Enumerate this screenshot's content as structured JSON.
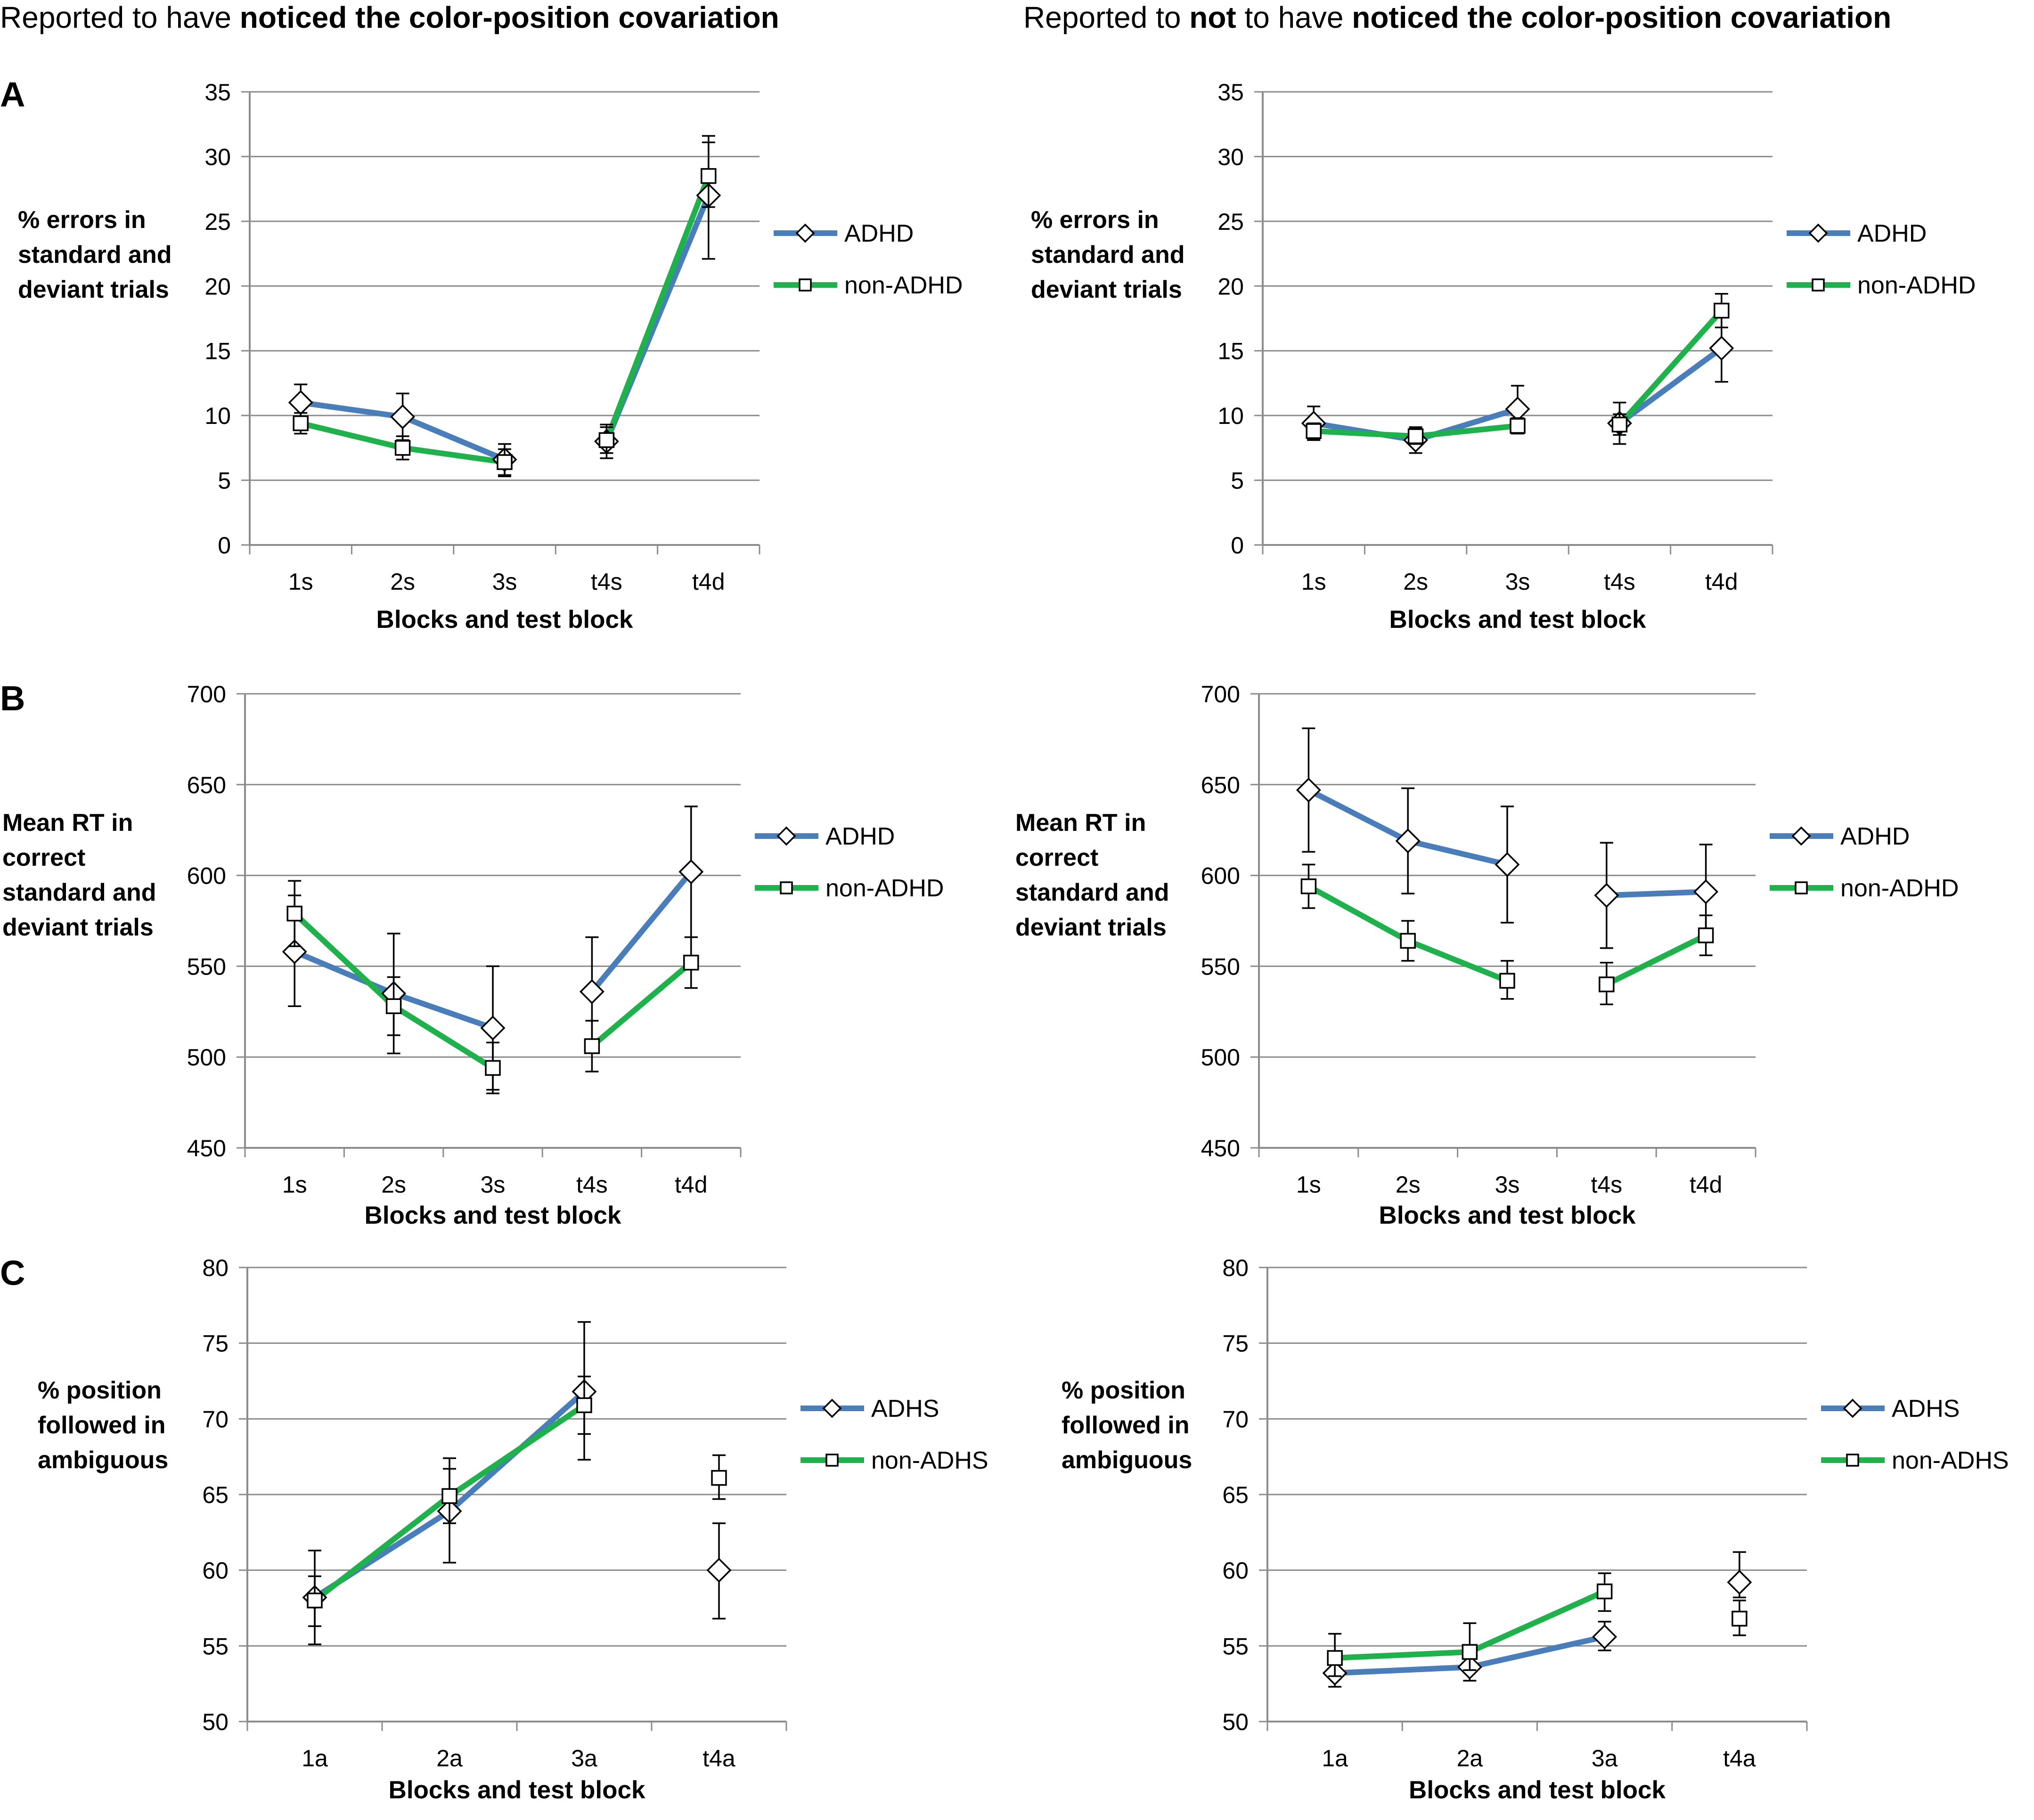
{
  "columns": [
    {
      "prefix": "Reported to have ",
      "bold": "noticed the color-position covariation"
    },
    {
      "prefix": "Reported to ",
      "bold1": "not",
      "middle": " to have ",
      "bold": "noticed the color-position covariation"
    }
  ],
  "panel_letters": [
    "A",
    "B",
    "C"
  ],
  "colors": {
    "blue": "#4a7ebb",
    "green": "#1fb14b",
    "grid": "#8c8c8c",
    "axis": "#8c8c8c"
  },
  "chart_data": [
    {
      "id": "A-left",
      "type": "line",
      "panel": "A",
      "ylabel": [
        "% errors in",
        "standard and",
        "deviant trials"
      ],
      "xlabel": "Blocks and test block",
      "categories": [
        "1s",
        "2s",
        "3s",
        "t4s",
        "t4d"
      ],
      "ylim": [
        0,
        35
      ],
      "yticks": [
        0,
        5,
        10,
        15,
        20,
        25,
        30,
        35
      ],
      "segments": [
        [
          0,
          1,
          2
        ],
        [
          3,
          4
        ]
      ],
      "series": [
        {
          "name": "ADHD",
          "color": "#4a7ebb",
          "marker": "diamond",
          "values": [
            11.0,
            9.9,
            6.6,
            8.0,
            27.0
          ],
          "err_low": [
            9.6,
            8.1,
            5.3,
            6.7,
            22.1
          ],
          "err_high": [
            12.4,
            11.7,
            7.8,
            9.3,
            31.1
          ]
        },
        {
          "name": "non-ADHD",
          "color": "#1fb14b",
          "marker": "square",
          "values": [
            9.4,
            7.5,
            6.4,
            8.1,
            28.5
          ],
          "err_low": [
            8.6,
            6.6,
            5.4,
            7.1,
            26.1
          ],
          "err_high": [
            10.2,
            8.4,
            7.4,
            9.1,
            31.6
          ]
        }
      ]
    },
    {
      "id": "A-right",
      "type": "line",
      "panel": "A",
      "ylabel": [
        "% errors in",
        "standard and",
        "deviant trials"
      ],
      "xlabel": "Blocks and test block",
      "categories": [
        "1s",
        "2s",
        "3s",
        "t4s",
        "t4d"
      ],
      "ylim": [
        0,
        35
      ],
      "yticks": [
        0,
        5,
        10,
        15,
        20,
        25,
        30,
        35
      ],
      "segments": [
        [
          0,
          1,
          2
        ],
        [
          3,
          4
        ]
      ],
      "series": [
        {
          "name": "ADHD",
          "color": "#4a7ebb",
          "marker": "diamond",
          "values": [
            9.4,
            8.1,
            10.5,
            9.4,
            15.2
          ],
          "err_low": [
            8.1,
            7.1,
            8.7,
            7.8,
            12.6
          ],
          "err_high": [
            10.7,
            9.1,
            12.3,
            11.0,
            17.8
          ]
        },
        {
          "name": "non-ADHD",
          "color": "#1fb14b",
          "marker": "square",
          "values": [
            8.8,
            8.4,
            9.2,
            9.3,
            18.1
          ],
          "err_low": [
            8.2,
            7.8,
            8.6,
            8.5,
            16.8
          ],
          "err_high": [
            9.4,
            9.0,
            9.8,
            10.1,
            19.4
          ]
        }
      ]
    },
    {
      "id": "B-left",
      "type": "line",
      "panel": "B",
      "ylabel": [
        "Mean RT in",
        "correct",
        "standard and",
        "deviant trials"
      ],
      "xlabel": "Blocks and test block",
      "categories": [
        "1s",
        "2s",
        "3s",
        "t4s",
        "t4d"
      ],
      "ylim": [
        450,
        700
      ],
      "yticks": [
        450,
        500,
        550,
        600,
        650,
        700
      ],
      "segments": [
        [
          0,
          1,
          2
        ],
        [
          3,
          4
        ]
      ],
      "series": [
        {
          "name": "ADHD",
          "color": "#4a7ebb",
          "marker": "diamond",
          "values": [
            558,
            535,
            516,
            536,
            602
          ],
          "err_low": [
            528,
            502,
            482,
            507,
            566
          ],
          "err_high": [
            589,
            568,
            550,
            566,
            638
          ]
        },
        {
          "name": "non-ADHD",
          "color": "#1fb14b",
          "marker": "square",
          "values": [
            579,
            528,
            494,
            506,
            552
          ],
          "err_low": [
            561,
            512,
            480,
            492,
            538
          ],
          "err_high": [
            597,
            544,
            508,
            520,
            566
          ]
        }
      ]
    },
    {
      "id": "B-right",
      "type": "line",
      "panel": "B",
      "ylabel": [
        "Mean RT in",
        "correct",
        "standard and",
        "deviant trials"
      ],
      "xlabel": "Blocks and test block",
      "categories": [
        "1s",
        "2s",
        "3s",
        "t4s",
        "t4d"
      ],
      "ylim": [
        450,
        700
      ],
      "yticks": [
        450,
        500,
        550,
        600,
        650,
        700
      ],
      "segments": [
        [
          0,
          1,
          2
        ],
        [
          3,
          4
        ]
      ],
      "series": [
        {
          "name": "ADHD",
          "color": "#4a7ebb",
          "marker": "diamond",
          "values": [
            647,
            619,
            606,
            589,
            591
          ],
          "err_low": [
            613,
            590,
            574,
            560,
            565
          ],
          "err_high": [
            681,
            648,
            638,
            618,
            617
          ]
        },
        {
          "name": "non-ADHD",
          "color": "#1fb14b",
          "marker": "square",
          "values": [
            594,
            564,
            542,
            540,
            567
          ],
          "err_low": [
            582,
            553,
            532,
            529,
            556
          ],
          "err_high": [
            606,
            575,
            553,
            552,
            578
          ]
        }
      ]
    },
    {
      "id": "C-left",
      "type": "line",
      "panel": "C",
      "ylabel": [
        "% position",
        "followed in",
        "ambiguous"
      ],
      "xlabel": "Blocks and test block",
      "categories": [
        "1a",
        "2a",
        "3a",
        "t4a"
      ],
      "ylim": [
        50,
        80
      ],
      "yticks": [
        50,
        55,
        60,
        65,
        70,
        75,
        80
      ],
      "segments": [
        [
          0,
          1,
          2
        ],
        [
          3
        ]
      ],
      "series": [
        {
          "name": "ADHS",
          "color": "#4a7ebb",
          "marker": "diamond",
          "values": [
            58.2,
            63.9,
            71.8,
            60.0
          ],
          "err_low": [
            55.1,
            60.5,
            67.3,
            56.8
          ],
          "err_high": [
            61.3,
            67.4,
            76.4,
            63.1
          ]
        },
        {
          "name": "non-ADHS",
          "color": "#1fb14b",
          "marker": "square",
          "values": [
            58.0,
            64.9,
            70.9,
            66.1
          ],
          "err_low": [
            56.3,
            63.1,
            69.0,
            64.7
          ],
          "err_high": [
            59.6,
            66.7,
            72.8,
            67.6
          ]
        }
      ]
    },
    {
      "id": "C-right",
      "type": "line",
      "panel": "C",
      "ylabel": [
        "% position",
        "followed in",
        "ambiguous"
      ],
      "xlabel": "Blocks and test block",
      "categories": [
        "1a",
        "2a",
        "3a",
        "t4a"
      ],
      "ylim": [
        50,
        80
      ],
      "yticks": [
        50,
        55,
        60,
        65,
        70,
        75,
        80
      ],
      "segments": [
        [
          0,
          1,
          2
        ],
        [
          3
        ]
      ],
      "series": [
        {
          "name": "ADHS",
          "color": "#4a7ebb",
          "marker": "diamond",
          "values": [
            53.2,
            53.6,
            55.6,
            59.2
          ],
          "err_low": [
            52.3,
            52.7,
            54.7,
            58.2
          ],
          "err_high": [
            54.2,
            54.6,
            56.6,
            61.2
          ]
        },
        {
          "name": "non-ADHS",
          "color": "#1fb14b",
          "marker": "square",
          "values": [
            54.2,
            54.6,
            58.6,
            56.8
          ],
          "err_low": [
            53.0,
            53.4,
            57.3,
            55.7
          ],
          "err_high": [
            55.8,
            56.5,
            59.8,
            58.0
          ]
        }
      ]
    }
  ]
}
